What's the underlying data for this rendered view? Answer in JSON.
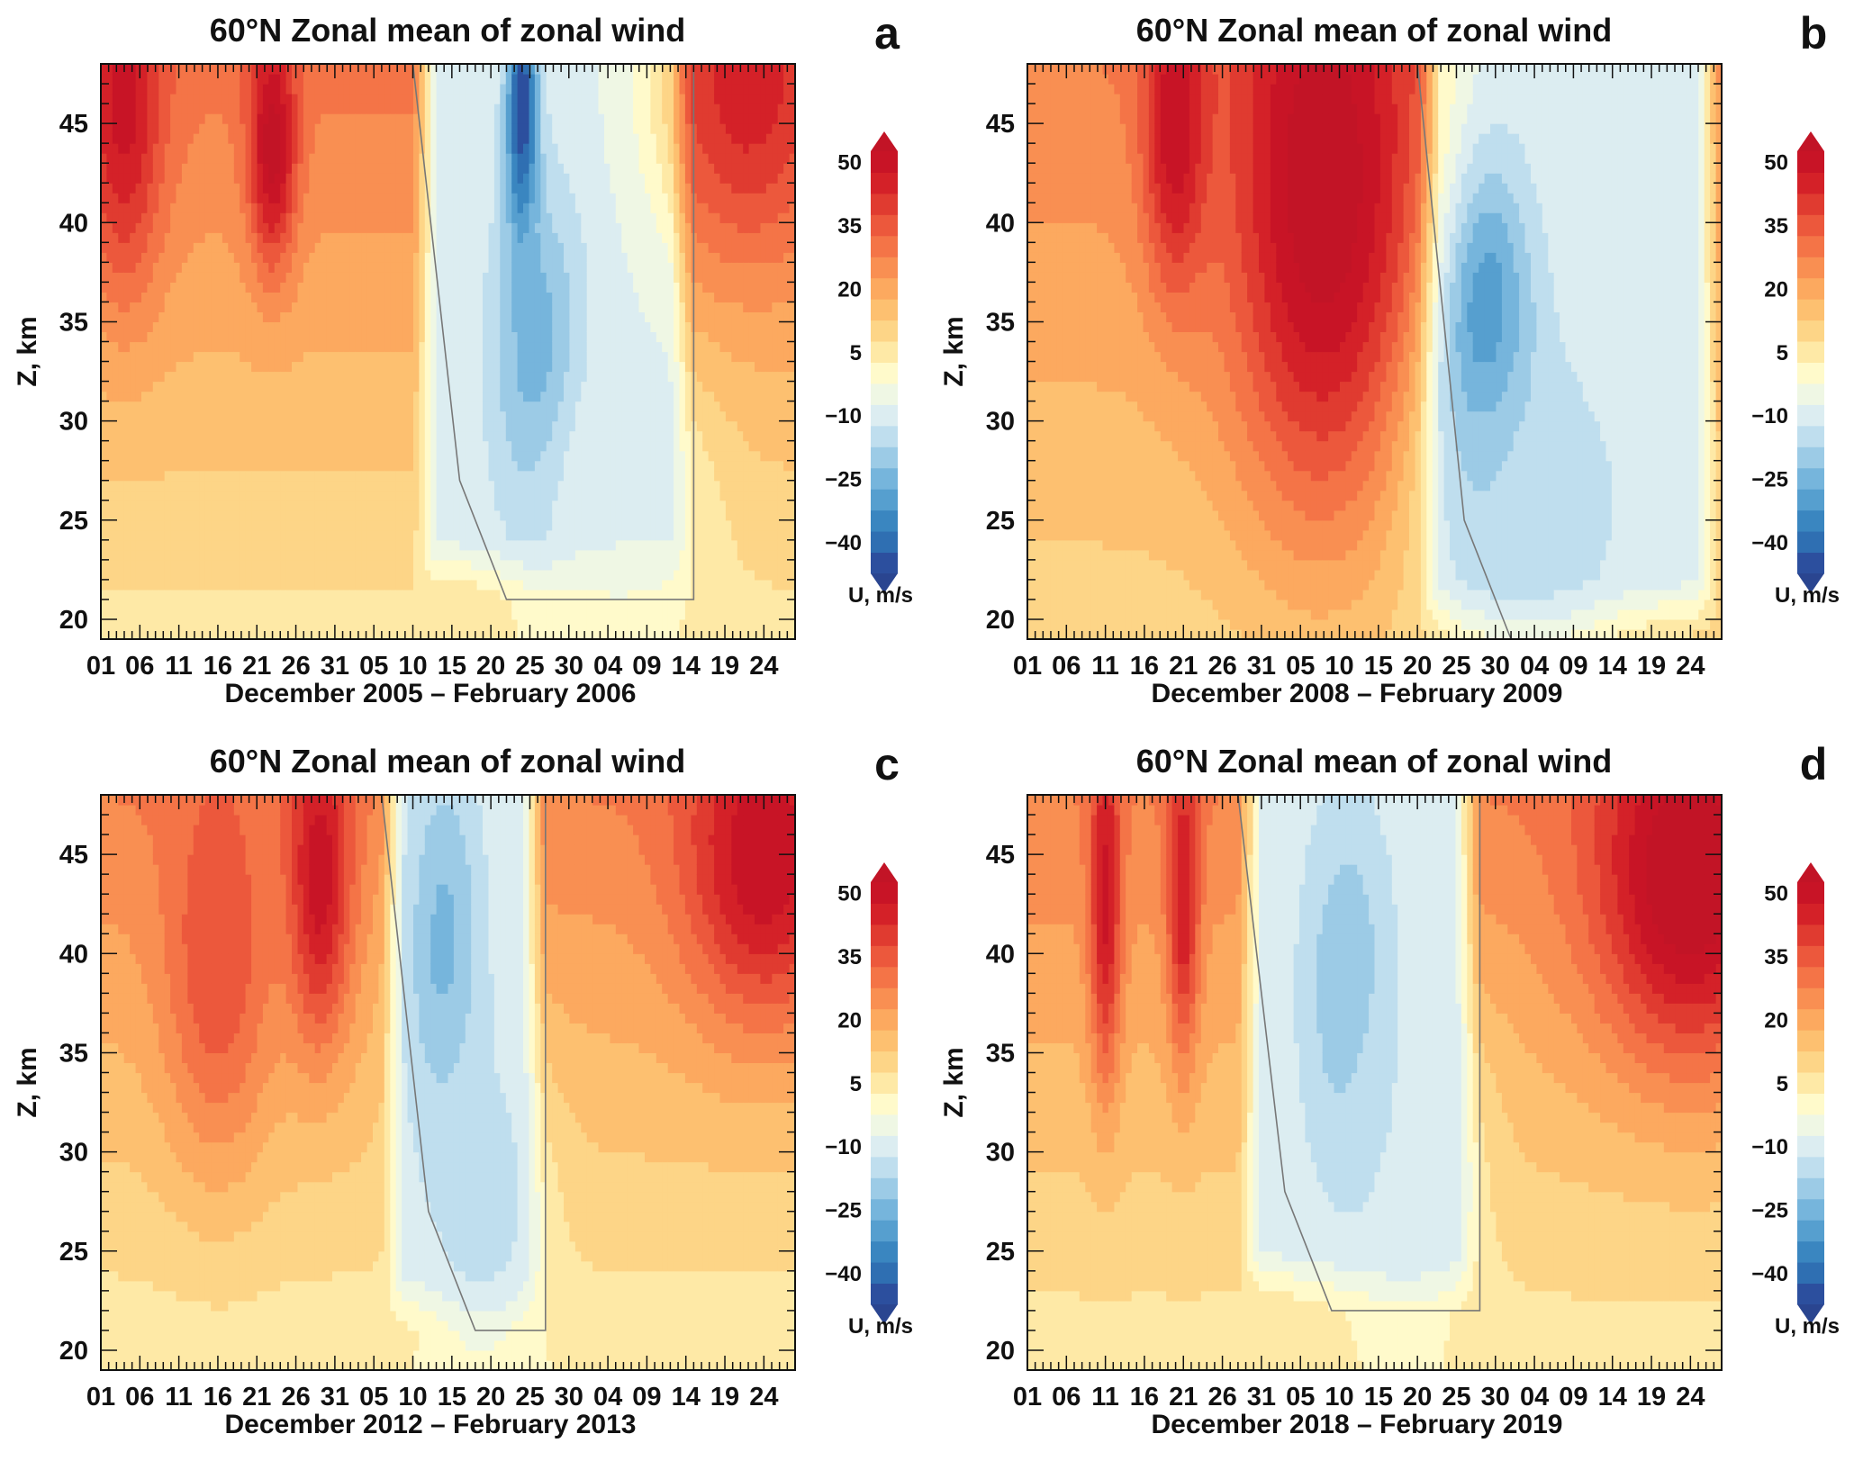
{
  "figure": {
    "colorbar": {
      "label": "U, m/s",
      "tick_values": [
        "50",
        "35",
        "20",
        "5",
        "−10",
        "−25",
        "−40"
      ],
      "levels": [
        -45,
        -40,
        -35,
        -30,
        -25,
        -20,
        -15,
        -10,
        -5,
        0,
        5,
        10,
        15,
        20,
        25,
        30,
        35,
        40,
        45,
        50,
        55
      ],
      "colors": [
        "#2c4f9e",
        "#2f6fb2",
        "#3a86c0",
        "#569fcf",
        "#76b5dc",
        "#9ccbe6",
        "#bfdeee",
        "#dcedf1",
        "#eff7e4",
        "#fffacb",
        "#fee9a6",
        "#fdd587",
        "#fdc070",
        "#fca95f",
        "#f98f52",
        "#f47447",
        "#ec583c",
        "#e03b30",
        "#d42128",
        "#c81426"
      ],
      "under_color": "#2a4590",
      "over_color": "#c21426"
    },
    "y_axis": {
      "label": "Z, km",
      "range": [
        19,
        48
      ],
      "ticks": [
        "20",
        "25",
        "30",
        "35",
        "40",
        "45"
      ]
    },
    "x_axis": {
      "tick_labels": [
        "01",
        "06",
        "11",
        "16",
        "21",
        "26",
        "31",
        "05",
        "10",
        "15",
        "20",
        "25",
        "30",
        "04",
        "09",
        "14",
        "19",
        "24"
      ],
      "day_range": [
        1,
        90
      ]
    }
  },
  "panels": [
    {
      "id": "a",
      "letter": "a",
      "title": "60°N Zonal mean of zonal wind",
      "xlabel": "December 2005 – February 2006"
    },
    {
      "id": "b",
      "letter": "b",
      "title": "60°N Zonal mean of zonal wind",
      "xlabel": "December 2008 – February 2009"
    },
    {
      "id": "c",
      "letter": "c",
      "title": "60°N Zonal mean of zonal wind",
      "xlabel": "December 2012 – February 2013"
    },
    {
      "id": "d",
      "letter": "d",
      "title": "60°N Zonal mean of zonal wind",
      "xlabel": "December 2018 – February 2019"
    }
  ],
  "chart_data": [
    {
      "type": "heatmap",
      "panel": "a",
      "title": "60°N Zonal mean of zonal wind",
      "xlabel": "December 2005 – February 2006",
      "ylabel": "Z, km",
      "colorbar_label": "U, m/s",
      "x_unit": "day since 1 Dec",
      "xlim": [
        1,
        90
      ],
      "ylim": [
        19,
        48
      ],
      "features": [
        {
          "kind": "peak",
          "day": 23,
          "alt": 44,
          "value": 58,
          "width_days": 3,
          "depth_km": 6
        },
        {
          "kind": "peak",
          "day": 4,
          "alt": 46,
          "value": 52,
          "width_days": 5,
          "depth_km": 9
        },
        {
          "kind": "peak",
          "day": 84,
          "alt": 47,
          "value": 48,
          "width_days": 10,
          "depth_km": 8
        },
        {
          "kind": "trough",
          "day": 55,
          "alt": 45,
          "value": -48,
          "width_days": 2,
          "depth_km": 7
        },
        {
          "kind": "trough",
          "day": 57,
          "alt": 33,
          "value": -24,
          "width_days": 6,
          "depth_km": 9
        },
        {
          "kind": "trough",
          "day": 68,
          "alt": 26,
          "value": -5,
          "width_days": 10,
          "depth_km": 7
        }
      ],
      "easterly_region": {
        "start_day": 41,
        "end_day": 77,
        "bottom_km": 21
      },
      "background": {
        "top_value": 32,
        "bottom_value": 8
      }
    },
    {
      "type": "heatmap",
      "panel": "b",
      "title": "60°N Zonal mean of zonal wind",
      "xlabel": "December 2008 – February 2009",
      "ylabel": "Z, km",
      "colorbar_label": "U, m/s",
      "x_unit": "day since 1 Dec",
      "xlim": [
        1,
        90
      ],
      "ylim": [
        19,
        48
      ],
      "features": [
        {
          "kind": "peak",
          "day": 39,
          "alt": 42,
          "value": 60,
          "width_days": 12,
          "depth_km": 16
        },
        {
          "kind": "peak",
          "day": 20,
          "alt": 45,
          "value": 55,
          "width_days": 4,
          "depth_km": 8
        },
        {
          "kind": "trough",
          "day": 60,
          "alt": 34,
          "value": -32,
          "width_days": 6,
          "depth_km": 9
        },
        {
          "kind": "trough",
          "day": 66,
          "alt": 26,
          "value": -14,
          "width_days": 12,
          "depth_km": 8
        }
      ],
      "easterly_region": {
        "start_day": 51,
        "end_day": 90,
        "bottom_km": 19
      },
      "background": {
        "top_value": 30,
        "bottom_value": 12
      }
    },
    {
      "type": "heatmap",
      "panel": "c",
      "title": "60°N Zonal mean of zonal wind",
      "xlabel": "December 2012 – February 2013",
      "ylabel": "Z, km",
      "colorbar_label": "U, m/s",
      "x_unit": "day since 1 Dec",
      "xlim": [
        1,
        90
      ],
      "ylim": [
        19,
        48
      ],
      "features": [
        {
          "kind": "peak",
          "day": 29,
          "alt": 44,
          "value": 54,
          "width_days": 4,
          "depth_km": 8
        },
        {
          "kind": "peak",
          "day": 16,
          "alt": 40,
          "value": 40,
          "width_days": 7,
          "depth_km": 10
        },
        {
          "kind": "peak",
          "day": 86,
          "alt": 45,
          "value": 55,
          "width_days": 10,
          "depth_km": 8
        },
        {
          "kind": "trough",
          "day": 45,
          "alt": 40,
          "value": -22,
          "width_days": 5,
          "depth_km": 10
        },
        {
          "kind": "trough",
          "day": 50,
          "alt": 28,
          "value": -12,
          "width_days": 7,
          "depth_km": 8
        }
      ],
      "easterly_region": {
        "start_day": 37,
        "end_day": 58,
        "bottom_km": 21
      },
      "background": {
        "top_value": 30,
        "bottom_value": 6
      }
    },
    {
      "type": "heatmap",
      "panel": "d",
      "title": "60°N Zonal mean of zonal wind",
      "xlabel": "December 2018 – February 2019",
      "ylabel": "Z, km",
      "colorbar_label": "U, m/s",
      "x_unit": "day since 1 Dec",
      "xlim": [
        1,
        90
      ],
      "ylim": [
        19,
        48
      ],
      "features": [
        {
          "kind": "peak",
          "day": 11,
          "alt": 43,
          "value": 52,
          "width_days": 2,
          "depth_km": 9
        },
        {
          "kind": "peak",
          "day": 21,
          "alt": 43,
          "value": 50,
          "width_days": 2,
          "depth_km": 8
        },
        {
          "kind": "peak",
          "day": 86,
          "alt": 44,
          "value": 62,
          "width_days": 12,
          "depth_km": 9
        },
        {
          "kind": "trough",
          "day": 42,
          "alt": 38,
          "value": -20,
          "width_days": 6,
          "depth_km": 10
        },
        {
          "kind": "trough",
          "day": 50,
          "alt": 30,
          "value": -10,
          "width_days": 8,
          "depth_km": 8
        }
      ],
      "easterly_region": {
        "start_day": 28,
        "end_day": 59,
        "bottom_km": 22
      },
      "background": {
        "top_value": 30,
        "bottom_value": 7
      }
    }
  ]
}
